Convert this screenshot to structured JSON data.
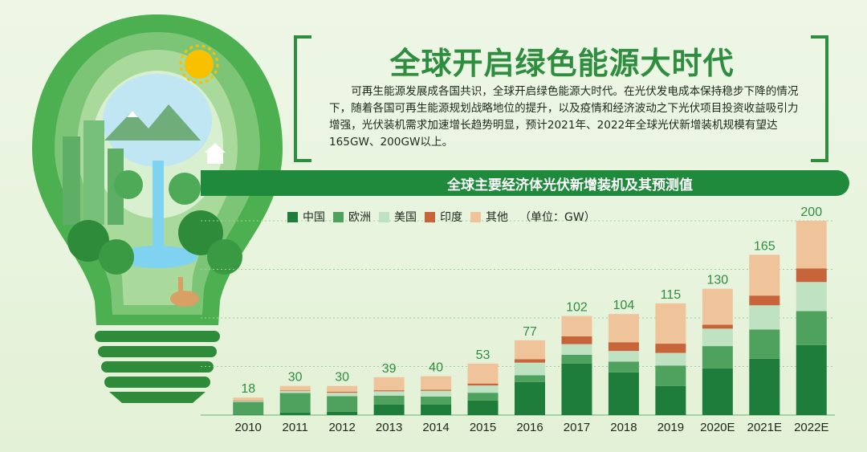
{
  "header": {
    "title": "全球开启绿色能源大时代",
    "body": "可再生能源发展成各国共识，全球开启绿色能源大时代。在光伏发电成本保持稳步下降的情况下，随着各国可再生能源规划战略地位的提升，以及疫情和经济波动之下光伏项目投资收益吸引力增强，光伏装机需求加速增长趋势明显，预计2021年、2022年全球光伏新增装机规模有望达165GW、200GW以上。"
  },
  "legend": {
    "unit": "（单位：GW）"
  },
  "colors": {
    "中国": "#1e7d3a",
    "欧洲": "#4ea25e",
    "美国": "#bfe2c2",
    "印度": "#c8643a",
    "其他": "#f0c49a",
    "total_label": "#2f8d3f",
    "banner": "#1f8a3c"
  },
  "chart_data": {
    "type": "bar",
    "stacked": true,
    "title": "全球主要经济体光伏新增装机及其预测值",
    "unit": "（单位：GW）",
    "categories": [
      "2010",
      "2011",
      "2012",
      "2013",
      "2014",
      "2015",
      "2016",
      "2017",
      "2018",
      "2019",
      "2020E",
      "2021E",
      "2022E"
    ],
    "series": [
      {
        "name": "中国",
        "values": [
          0.5,
          2.7,
          3.5,
          11,
          11,
          15,
          34,
          53,
          44,
          30,
          48,
          58,
          72
        ]
      },
      {
        "name": "欧洲",
        "values": [
          13,
          20,
          16,
          9,
          8,
          8,
          7,
          9,
          11,
          21,
          23,
          30,
          35
        ]
      },
      {
        "name": "美国",
        "values": [
          1,
          2,
          3.5,
          4.5,
          6,
          7.5,
          13,
          11,
          11,
          13,
          18,
          25,
          30
        ]
      },
      {
        "name": "印度",
        "values": [
          0.5,
          0.5,
          1,
          1,
          1,
          2,
          3.5,
          8,
          9,
          9.5,
          4,
          10,
          14
        ]
      },
      {
        "name": "其他",
        "values": [
          3,
          4.8,
          6,
          13.5,
          14,
          20.5,
          19.5,
          21,
          29,
          41.5,
          37,
          42,
          49
        ]
      }
    ],
    "totals": [
      18,
      30,
      30,
      39,
      40,
      53,
      77,
      102,
      104,
      115,
      130,
      165,
      200
    ],
    "ylim": [
      0,
      200
    ],
    "grid": true,
    "legend_position": "top-left"
  }
}
